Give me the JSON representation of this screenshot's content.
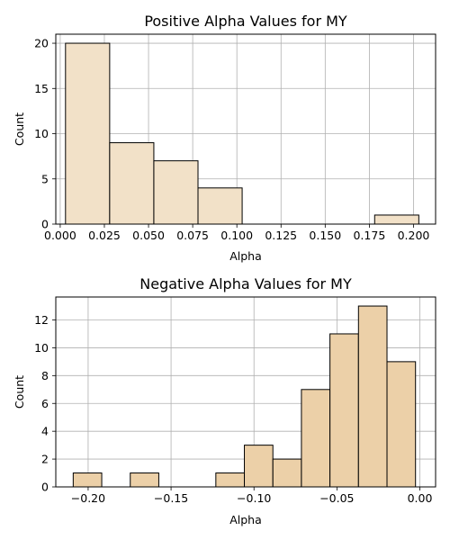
{
  "chart_data": [
    {
      "type": "bar",
      "title": "Positive Alpha Values for MY",
      "xlabel": "Alpha",
      "ylabel": "Count",
      "xlim": [
        -0.0025,
        0.2125
      ],
      "ylim": [
        0,
        21
      ],
      "grid": true,
      "bar_color": "#f2e1c8",
      "edge_color": "#000000",
      "xticks": [
        0.0,
        0.025,
        0.05,
        0.075,
        0.1,
        0.125,
        0.15,
        0.175,
        0.2
      ],
      "xtick_labels": [
        "0.000",
        "0.025",
        "0.050",
        "0.075",
        "0.100",
        "0.125",
        "0.150",
        "0.175",
        "0.200"
      ],
      "yticks": [
        0,
        5,
        10,
        15,
        20
      ],
      "ytick_labels": [
        "0",
        "5",
        "10",
        "15",
        "20"
      ],
      "bins": [
        {
          "x0": 0.003,
          "x1": 0.028,
          "count": 20
        },
        {
          "x0": 0.028,
          "x1": 0.053,
          "count": 9
        },
        {
          "x0": 0.053,
          "x1": 0.078,
          "count": 7
        },
        {
          "x0": 0.078,
          "x1": 0.103,
          "count": 4
        },
        {
          "x0": 0.103,
          "x1": 0.128,
          "count": 0
        },
        {
          "x0": 0.128,
          "x1": 0.153,
          "count": 0
        },
        {
          "x0": 0.153,
          "x1": 0.178,
          "count": 0
        },
        {
          "x0": 0.178,
          "x1": 0.203,
          "count": 1
        }
      ]
    },
    {
      "type": "bar",
      "title": "Negative Alpha Values for MY",
      "xlabel": "Alpha",
      "ylabel": "Count",
      "xlim": [
        -0.2195,
        0.0095
      ],
      "ylim": [
        0,
        13.65
      ],
      "grid": true,
      "bar_color": "#ecd0a8",
      "edge_color": "#000000",
      "xticks": [
        -0.2,
        -0.15,
        -0.1,
        -0.05,
        0.0
      ],
      "xtick_labels": [
        "−0.20",
        "−0.15",
        "−0.10",
        "−0.05",
        "0.00"
      ],
      "yticks": [
        0,
        2,
        4,
        6,
        8,
        10,
        12
      ],
      "ytick_labels": [
        "0",
        "2",
        "4",
        "6",
        "8",
        "10",
        "12"
      ],
      "bins": [
        {
          "x0": -0.209,
          "x1": -0.1918,
          "count": 1
        },
        {
          "x0": -0.1918,
          "x1": -0.1746,
          "count": 0
        },
        {
          "x0": -0.1746,
          "x1": -0.1574,
          "count": 1
        },
        {
          "x0": -0.1574,
          "x1": -0.1402,
          "count": 0
        },
        {
          "x0": -0.1402,
          "x1": -0.123,
          "count": 0
        },
        {
          "x0": -0.123,
          "x1": -0.1058,
          "count": 1
        },
        {
          "x0": -0.1058,
          "x1": -0.0886,
          "count": 3
        },
        {
          "x0": -0.0886,
          "x1": -0.0714,
          "count": 2
        },
        {
          "x0": -0.0714,
          "x1": -0.0542,
          "count": 7
        },
        {
          "x0": -0.0542,
          "x1": -0.037,
          "count": 11
        },
        {
          "x0": -0.037,
          "x1": -0.0198,
          "count": 13
        },
        {
          "x0": -0.0198,
          "x1": -0.0026,
          "count": 9
        }
      ]
    }
  ]
}
